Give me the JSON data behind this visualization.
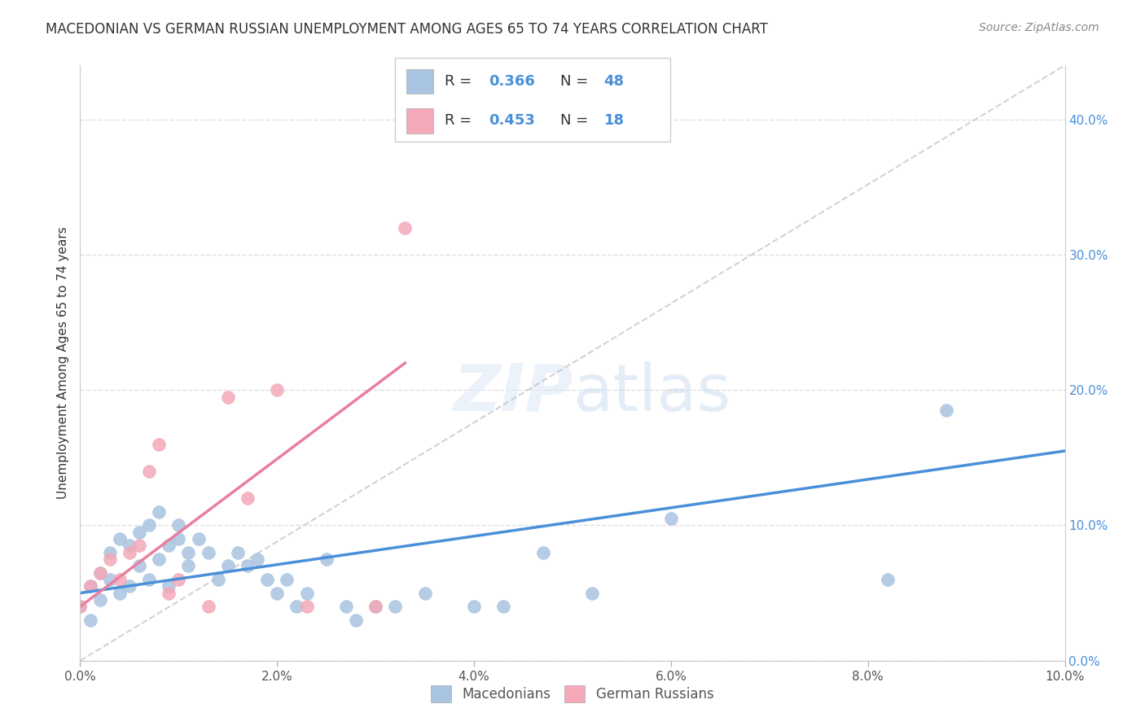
{
  "title": "MACEDONIAN VS GERMAN RUSSIAN UNEMPLOYMENT AMONG AGES 65 TO 74 YEARS CORRELATION CHART",
  "source": "Source: ZipAtlas.com",
  "ylabel": "Unemployment Among Ages 65 to 74 years",
  "x_min": 0.0,
  "x_max": 0.1,
  "y_min": 0.0,
  "y_max": 0.44,
  "x_ticks": [
    0.0,
    0.02,
    0.04,
    0.06,
    0.08,
    0.1
  ],
  "y_ticks_right": [
    0.0,
    0.1,
    0.2,
    0.3,
    0.4
  ],
  "macedonian_color": "#a8c4e0",
  "german_russian_color": "#f4a8b8",
  "mac_x": [
    0.0,
    0.001,
    0.001,
    0.002,
    0.002,
    0.003,
    0.003,
    0.004,
    0.004,
    0.005,
    0.005,
    0.006,
    0.006,
    0.007,
    0.007,
    0.008,
    0.008,
    0.009,
    0.009,
    0.01,
    0.01,
    0.011,
    0.011,
    0.012,
    0.013,
    0.014,
    0.015,
    0.016,
    0.017,
    0.018,
    0.019,
    0.02,
    0.021,
    0.022,
    0.023,
    0.025,
    0.027,
    0.028,
    0.03,
    0.032,
    0.035,
    0.04,
    0.043,
    0.047,
    0.052,
    0.06,
    0.082,
    0.088
  ],
  "mac_y": [
    0.04,
    0.03,
    0.055,
    0.045,
    0.065,
    0.06,
    0.08,
    0.05,
    0.09,
    0.085,
    0.055,
    0.07,
    0.095,
    0.06,
    0.1,
    0.075,
    0.11,
    0.085,
    0.055,
    0.1,
    0.09,
    0.08,
    0.07,
    0.09,
    0.08,
    0.06,
    0.07,
    0.08,
    0.07,
    0.075,
    0.06,
    0.05,
    0.06,
    0.04,
    0.05,
    0.075,
    0.04,
    0.03,
    0.04,
    0.04,
    0.05,
    0.04,
    0.04,
    0.08,
    0.05,
    0.105,
    0.06,
    0.185
  ],
  "gr_x": [
    0.0,
    0.001,
    0.002,
    0.003,
    0.004,
    0.005,
    0.006,
    0.007,
    0.008,
    0.009,
    0.01,
    0.013,
    0.015,
    0.017,
    0.02,
    0.023,
    0.03,
    0.033
  ],
  "gr_y": [
    0.04,
    0.055,
    0.065,
    0.075,
    0.06,
    0.08,
    0.085,
    0.14,
    0.16,
    0.05,
    0.06,
    0.04,
    0.195,
    0.12,
    0.2,
    0.04,
    0.04,
    0.32
  ],
  "blue_line": {
    "x": [
      0.0,
      0.1
    ],
    "y": [
      0.05,
      0.155
    ]
  },
  "pink_line": {
    "x": [
      0.0,
      0.033
    ],
    "y": [
      0.04,
      0.22
    ]
  },
  "diag_line": {
    "x": [
      0.0,
      0.1
    ],
    "y": [
      0.0,
      0.44
    ]
  },
  "blue_line_color": "#4a90d9",
  "pink_line_color": "#e87fa0",
  "diagonal_line_color": "#c0c0c0",
  "r_blue": "0.366",
  "n_blue": "48",
  "r_pink": "0.453",
  "n_pink": "18",
  "bottom_legend_macedonians": "Macedonians",
  "bottom_legend_german_russians": "German Russians",
  "watermark_zip": "ZIP",
  "watermark_atlas": "atlas",
  "background_color": "#ffffff",
  "grid_color": "#e0e0e0"
}
